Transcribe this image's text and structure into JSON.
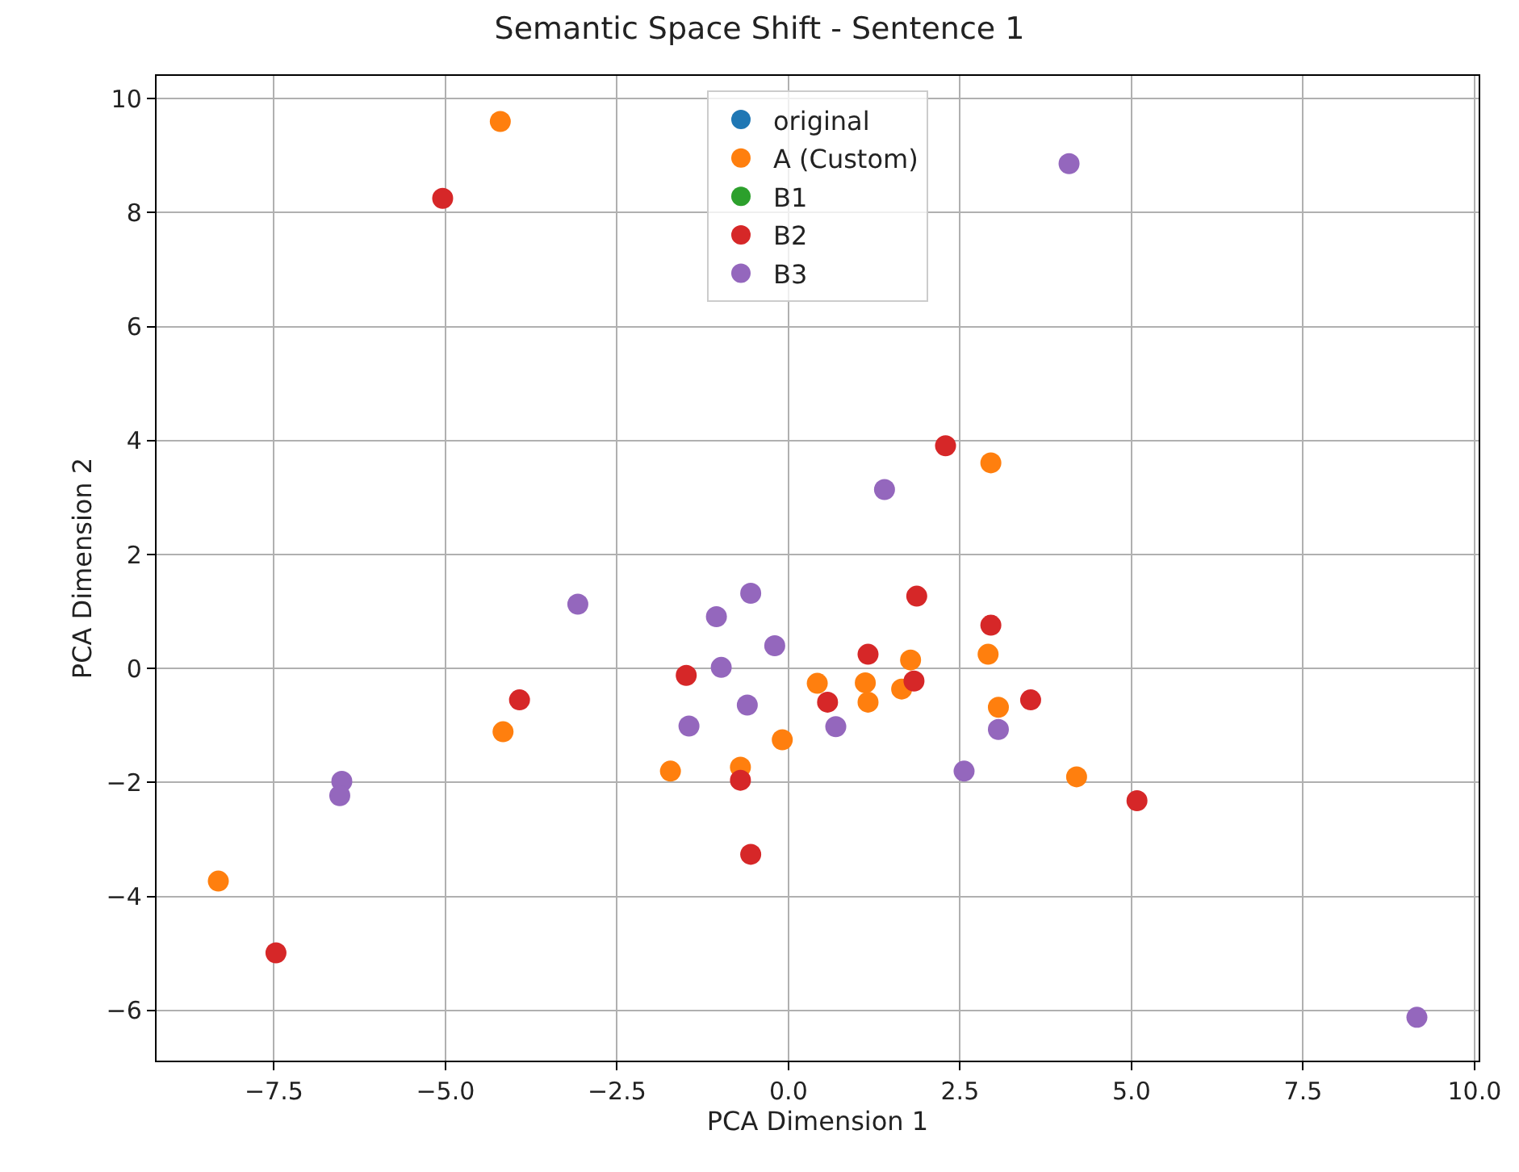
{
  "chart_data": {
    "type": "scatter",
    "title": "Semantic Space Shift - Sentence 1",
    "xlabel": "PCA Dimension 1",
    "ylabel": "PCA Dimension 2",
    "xlim": [
      -9.21,
      10.06
    ],
    "ylim": [
      -6.88,
      10.4
    ],
    "xticks": [
      {
        "value": -7.5,
        "label": "−7.5"
      },
      {
        "value": -5,
        "label": "−5.0"
      },
      {
        "value": -2.5,
        "label": "−2.5"
      },
      {
        "value": 0,
        "label": "0.0"
      },
      {
        "value": 2.5,
        "label": "2.5"
      },
      {
        "value": 5,
        "label": "5.0"
      },
      {
        "value": 7.5,
        "label": "7.5"
      },
      {
        "value": 10,
        "label": "10.0"
      }
    ],
    "yticks": [
      {
        "value": -6,
        "label": "−6"
      },
      {
        "value": -4,
        "label": "−4"
      },
      {
        "value": -2,
        "label": "−2"
      },
      0,
      2,
      4,
      6,
      8,
      10
    ],
    "grid": true,
    "legend": "top",
    "marker": "circle",
    "series": [
      {
        "name": "original",
        "color": "#1f77b4",
        "x": [
          null
        ],
        "values": [
          null
        ]
      },
      {
        "name": "A (Custom)",
        "color": "#ff7f0e",
        "x": [
          -4.2,
          2.95,
          -8.31,
          -4.16,
          -1.72,
          -0.7,
          -0.09,
          0.42,
          1.12,
          1.16,
          1.65,
          1.78,
          2.91,
          3.06,
          4.2
        ],
        "values": [
          9.6,
          3.61,
          -3.73,
          -1.11,
          -1.8,
          -1.73,
          -1.25,
          -0.26,
          -0.25,
          -0.59,
          -0.36,
          0.15,
          0.25,
          -0.68,
          -1.9
        ]
      },
      {
        "name": "B1",
        "color": "#2ca02c",
        "x": [
          null
        ],
        "values": [
          null
        ]
      },
      {
        "name": "B2",
        "color": "#d62728",
        "x": [
          -5.04,
          2.29,
          -7.47,
          -3.92,
          -1.49,
          -0.7,
          -0.55,
          0.57,
          1.87,
          1.16,
          1.83,
          2.95,
          3.53,
          5.08
        ],
        "values": [
          8.25,
          3.91,
          -4.99,
          -0.55,
          -0.12,
          -1.96,
          -3.26,
          -0.59,
          1.27,
          0.25,
          -0.22,
          0.76,
          -0.55,
          -2.32
        ]
      },
      {
        "name": "B3",
        "color": "#9467bd",
        "x": [
          4.09,
          1.4,
          -6.51,
          -6.54,
          -3.07,
          -1.05,
          -0.55,
          -0.2,
          -0.98,
          -0.6,
          -1.45,
          0.69,
          2.56,
          3.06,
          9.16
        ],
        "values": [
          8.86,
          3.14,
          -1.98,
          -2.23,
          1.13,
          0.91,
          1.32,
          0.4,
          0.02,
          -0.64,
          -1.01,
          -1.02,
          -1.8,
          -1.07,
          -6.12
        ]
      }
    ]
  }
}
